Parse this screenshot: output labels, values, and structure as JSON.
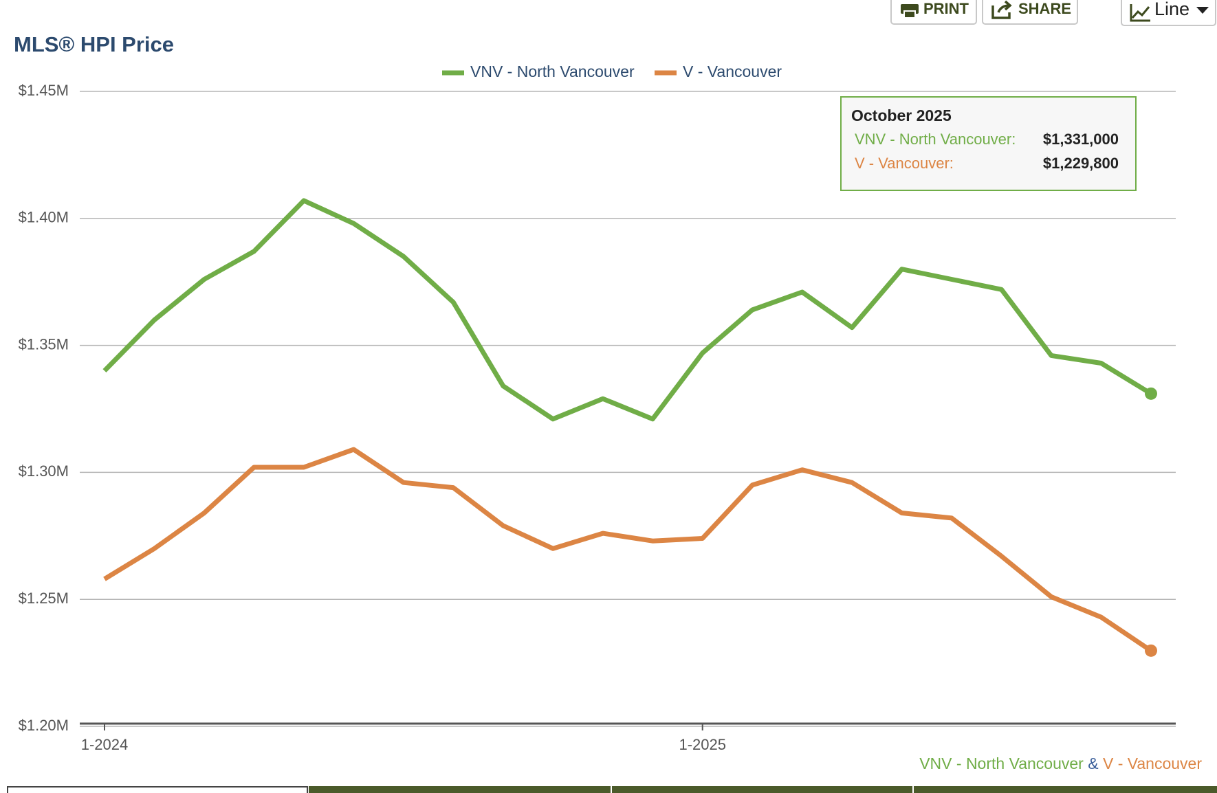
{
  "toolbar": {
    "print": "PRINT",
    "share": "SHARE",
    "view": "Line"
  },
  "chart_data": {
    "type": "line",
    "title": "MLS® HPI Price",
    "categories": [
      "1-2024",
      null,
      null,
      null,
      null,
      null,
      null,
      null,
      null,
      null,
      null,
      null,
      "1-2025",
      null,
      null,
      null,
      null,
      null,
      null,
      null,
      null,
      null
    ],
    "series": [
      {
        "name": "VNV - North Vancouver",
        "color": "#70ad47",
        "values": [
          1340000,
          1360000,
          1376000,
          1387000,
          1407000,
          1398000,
          1385000,
          1367000,
          1334000,
          1321000,
          1329000,
          1321000,
          1347000,
          1364000,
          1371000,
          1357000,
          1380000,
          1376000,
          1372000,
          1346000,
          1343000,
          1331000
        ]
      },
      {
        "name": "V - Vancouver",
        "color": "#dc8544",
        "values": [
          1258000,
          1270000,
          1284000,
          1302000,
          1302000,
          1309000,
          1296000,
          1294000,
          1279000,
          1270000,
          1276000,
          1273000,
          1274000,
          1295000,
          1301000,
          1296000,
          1284000,
          1282000,
          1267000,
          1251000,
          1243000,
          1229800
        ]
      }
    ],
    "ylim": [
      1200000,
      1450000
    ],
    "yticks": [
      {
        "value": 1200000,
        "label": "$1.20M"
      },
      {
        "value": 1250000,
        "label": "$1.25M"
      },
      {
        "value": 1300000,
        "label": "$1.30M"
      },
      {
        "value": 1350000,
        "label": "$1.35M"
      },
      {
        "value": 1400000,
        "label": "$1.40M"
      },
      {
        "value": 1450000,
        "label": "$1.45M"
      }
    ],
    "grid": true,
    "legend": "top"
  },
  "tooltip": {
    "title": "October 2025",
    "items": [
      {
        "name": "VNV - North Vancouver:",
        "label": "$1,331,000"
      },
      {
        "name": "V - Vancouver:",
        "label": "$1,229,800"
      }
    ]
  },
  "footer": [
    "VNV - North Vancouver",
    "&",
    "V - Vancouver"
  ]
}
